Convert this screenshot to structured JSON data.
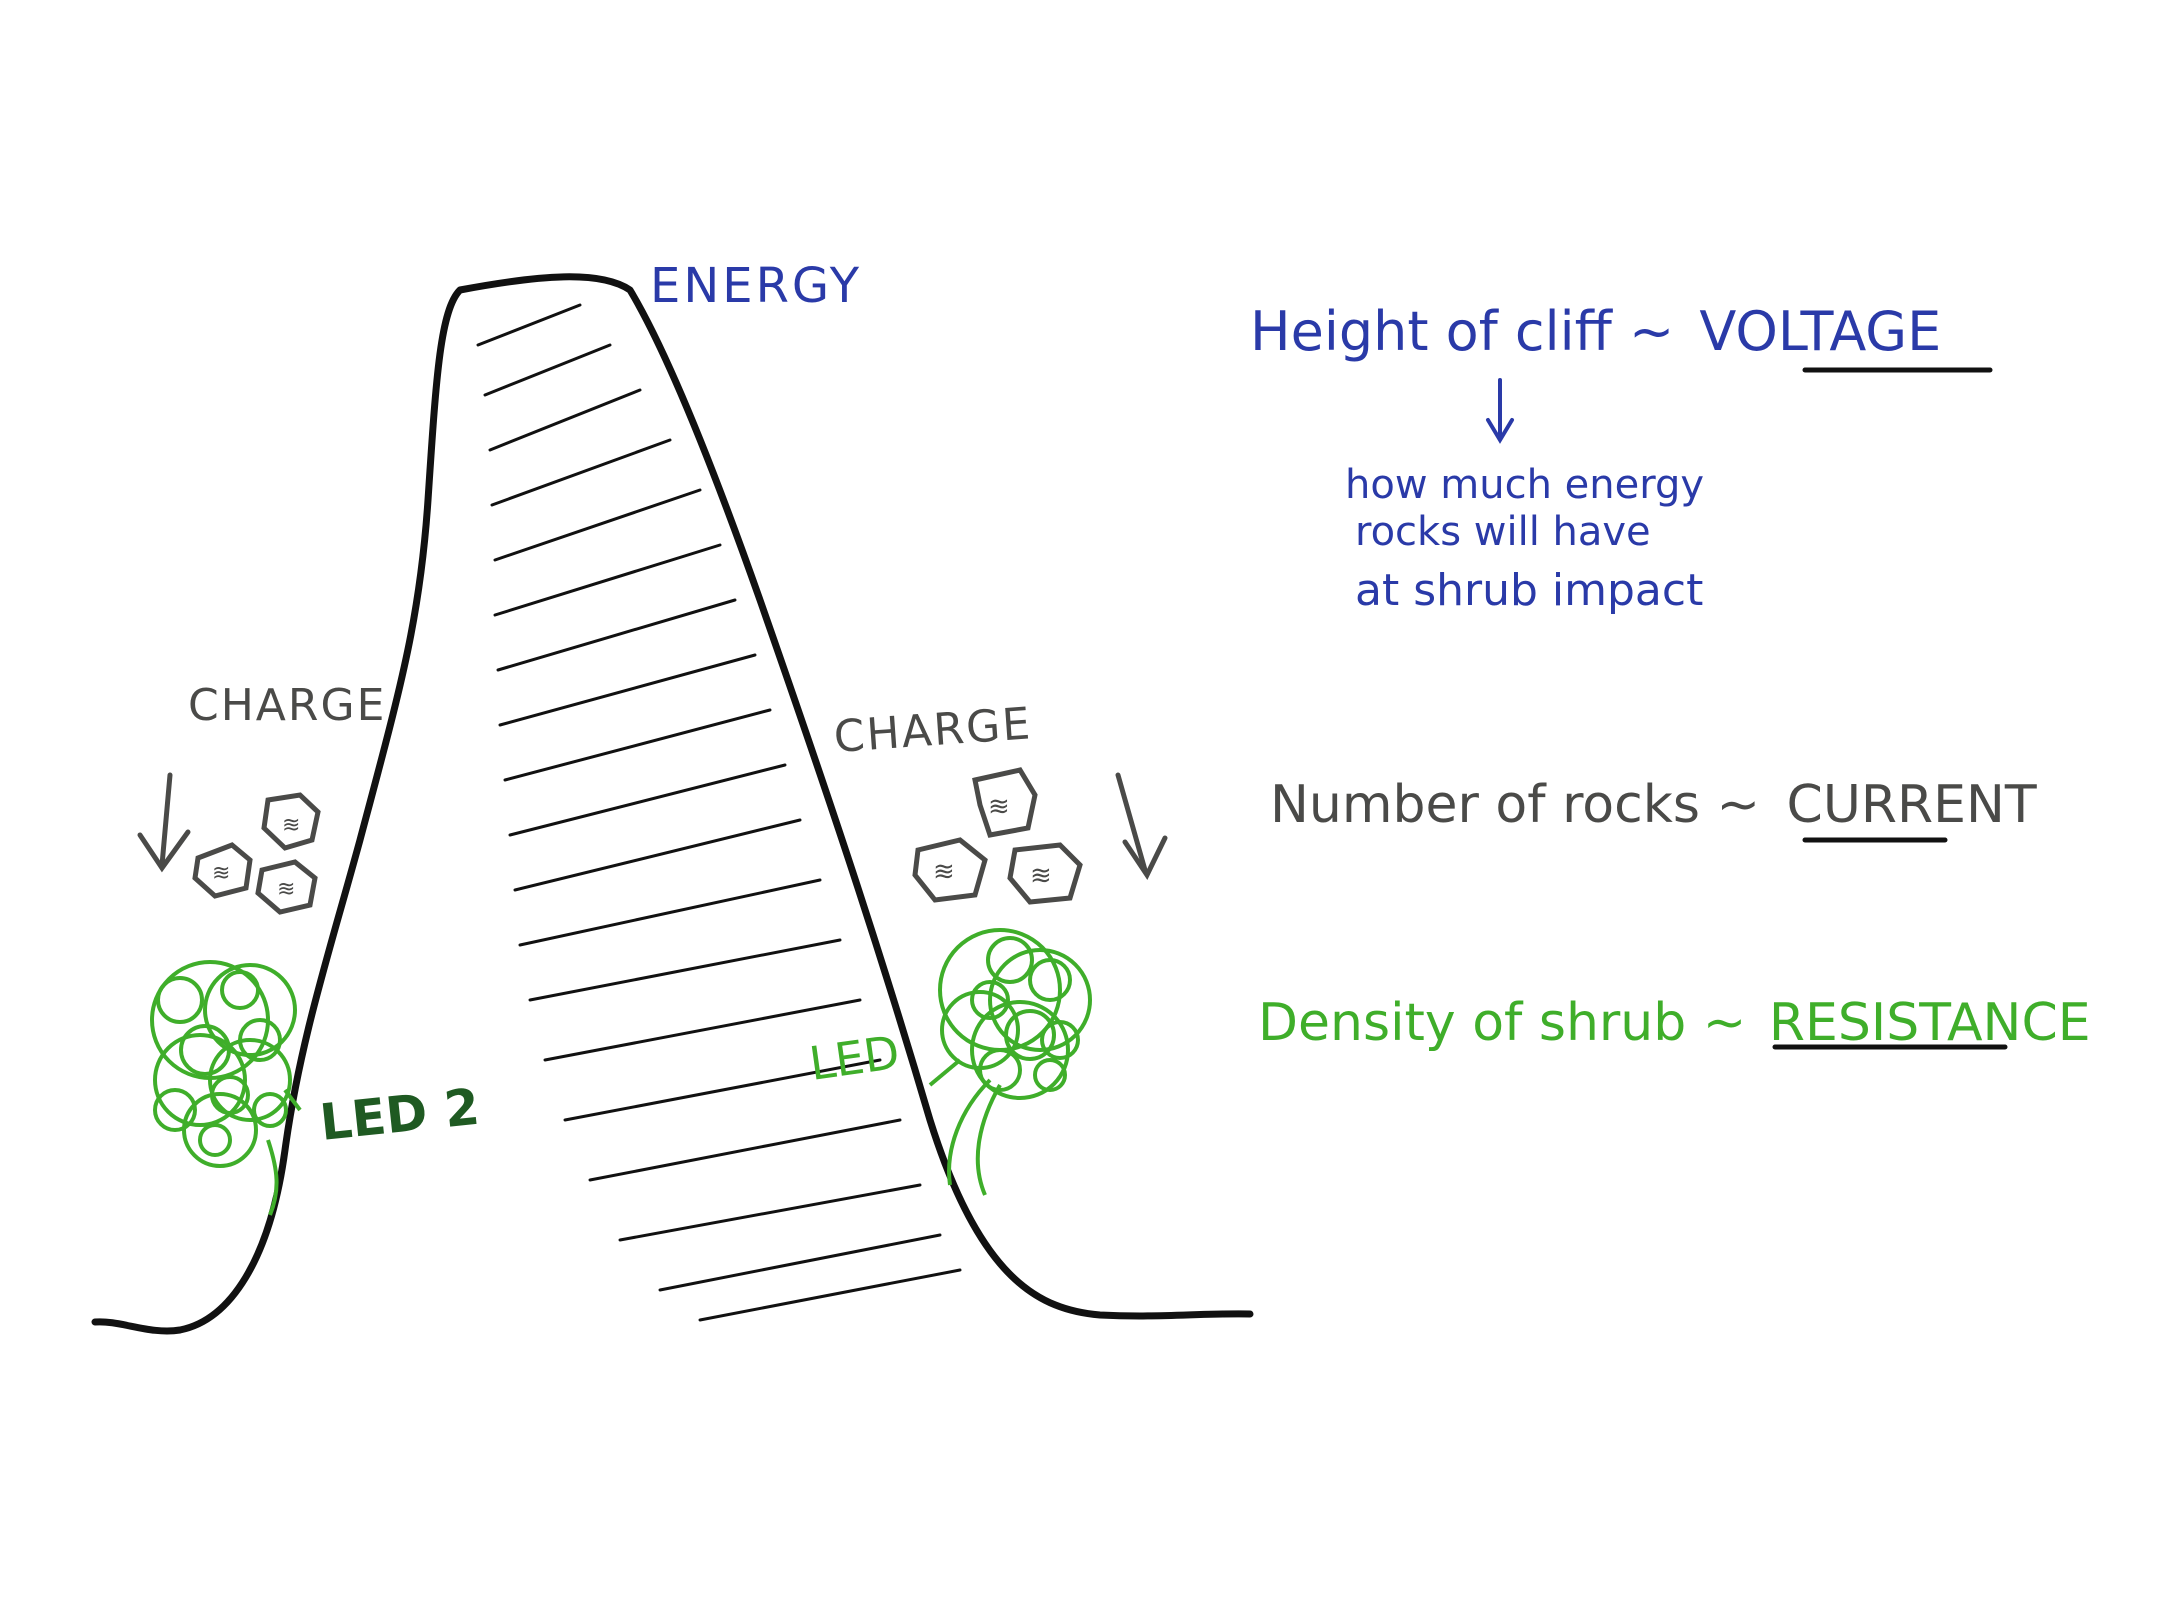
{
  "labels": {
    "energy": "ENERGY",
    "charge_left": "CHARGE",
    "charge_right": "CHARGE",
    "led_left": "LED 2",
    "led_right": "LED"
  },
  "rock_glyph": "≋",
  "legend": {
    "voltage": {
      "prefix": "Height of  cliff ~",
      "term": "VOLTAGE",
      "color": "#2a3aa8"
    },
    "voltage_note": [
      "how much energy",
      "rocks will have",
      "at shrub impact"
    ],
    "current": {
      "prefix": "Number of rocks ~",
      "term": "CURRENT",
      "color": "#4a4a48"
    },
    "resistance": {
      "prefix": "Density of shrub ~",
      "term": "RESISTANCE",
      "color": "#3fae2a"
    }
  },
  "colors": {
    "cliff": "#111111",
    "energy_text": "#2a3aa8",
    "charge": "#4a4a48",
    "shrub": "#3fae2a",
    "led_left": "#1f5a22",
    "led_right": "#3fae2a"
  }
}
